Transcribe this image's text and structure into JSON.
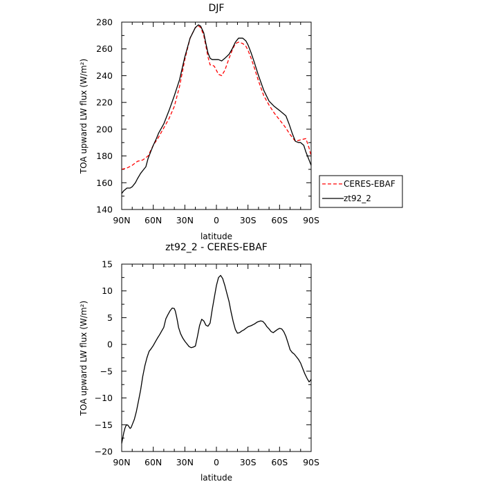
{
  "chart_data": [
    {
      "type": "line",
      "title": "DJF",
      "xlabel": "latitude",
      "ylabel": "TOA upward LW flux (W/m²)",
      "xlim": [
        90,
        -90
      ],
      "ylim": [
        140,
        280
      ],
      "xticks": [
        90,
        60,
        30,
        0,
        -30,
        -60,
        -90
      ],
      "xtick_labels": [
        "90N",
        "60N",
        "30N",
        "0",
        "30S",
        "60S",
        "90S"
      ],
      "yticks": [
        140,
        160,
        180,
        200,
        220,
        240,
        260,
        280
      ],
      "legend": "outside-right",
      "series": [
        {
          "name": "CERES-EBAF",
          "color": "#ff0000",
          "style": "dashed",
          "x": [
            90,
            85,
            80,
            75,
            70,
            65,
            60,
            55,
            50,
            45,
            40,
            35,
            30,
            25,
            20,
            17,
            15,
            12,
            10,
            8,
            6,
            4,
            2,
            0,
            -2,
            -5,
            -8,
            -12,
            -15,
            -18,
            -21,
            -25,
            -28,
            -30,
            -33,
            -36,
            -40,
            -45,
            -50,
            -55,
            -60,
            -65,
            -70,
            -75,
            -80,
            -85,
            -88,
            -90
          ],
          "y": [
            170,
            171,
            173,
            176,
            177,
            180,
            188,
            194,
            201,
            208,
            217,
            232,
            252,
            268,
            276,
            277,
            276,
            270,
            262,
            254,
            248,
            248,
            247,
            244,
            241,
            240,
            244,
            253,
            259,
            264,
            265,
            264,
            262,
            259,
            253,
            246,
            236,
            225,
            218,
            212,
            207,
            202,
            196,
            191,
            192,
            193,
            186,
            180
          ]
        },
        {
          "name": "zt92_2",
          "color": "#000000",
          "style": "solid",
          "x": [
            90,
            88,
            85,
            82,
            80,
            77,
            75,
            72,
            70,
            67,
            65,
            62,
            60,
            57,
            55,
            50,
            45,
            40,
            35,
            30,
            25,
            20,
            17,
            15,
            12,
            10,
            8,
            6,
            4,
            2,
            0,
            -2,
            -5,
            -8,
            -12,
            -15,
            -18,
            -21,
            -25,
            -28,
            -30,
            -33,
            -36,
            -40,
            -45,
            -50,
            -55,
            -60,
            -63,
            -66,
            -69,
            -72,
            -75,
            -78,
            -80,
            -83,
            -85,
            -88,
            -90
          ],
          "y": [
            152,
            154,
            156,
            156,
            157,
            160,
            163,
            167,
            169,
            172,
            178,
            184,
            188,
            193,
            197,
            204,
            214,
            225,
            237,
            254,
            268,
            276,
            278,
            277,
            272,
            264,
            257,
            253,
            252,
            252,
            252,
            252,
            251,
            253,
            256,
            260,
            265,
            268,
            268,
            266,
            263,
            257,
            250,
            240,
            229,
            221,
            217,
            214,
            212,
            210,
            204,
            197,
            191,
            190,
            190,
            188,
            183,
            177,
            173
          ]
        }
      ]
    },
    {
      "type": "line",
      "title": "zt92_2 - CERES-EBAF",
      "xlabel": "latitude",
      "ylabel": "TOA upward LW flux (W/m²)",
      "xlim": [
        90,
        -90
      ],
      "ylim": [
        -20,
        15
      ],
      "xticks": [
        90,
        60,
        30,
        0,
        -30,
        -60,
        -90
      ],
      "xtick_labels": [
        "90N",
        "60N",
        "30N",
        "0",
        "30S",
        "60S",
        "90S"
      ],
      "yticks": [
        -20,
        -15,
        -10,
        -5,
        0,
        5,
        10,
        15
      ],
      "ytick_labels": [
        "−20",
        "−15",
        "−10",
        "−5",
        "0",
        "5",
        "10",
        "15"
      ],
      "series": [
        {
          "name": "zt92_2 - CERES-EBAF",
          "color": "#000000",
          "style": "solid",
          "x": [
            90,
            89,
            88,
            87,
            86,
            85,
            84,
            83,
            82,
            81,
            80,
            78,
            76,
            74,
            72,
            70,
            68,
            66,
            64,
            62,
            60,
            58,
            56,
            54,
            52,
            50,
            48,
            46,
            44,
            42,
            40,
            39,
            38,
            37,
            36,
            34,
            32,
            30,
            28,
            26,
            24,
            22,
            20,
            18,
            16,
            14,
            12,
            10,
            8,
            6,
            4,
            2,
            0,
            -2,
            -4,
            -6,
            -8,
            -10,
            -12,
            -14,
            -16,
            -18,
            -20,
            -22,
            -24,
            -26,
            -28,
            -30,
            -33,
            -36,
            -39,
            -42,
            -44,
            -46,
            -48,
            -50,
            -52,
            -54,
            -56,
            -58,
            -60,
            -62,
            -64,
            -66,
            -68,
            -70,
            -72,
            -74,
            -76,
            -78,
            -80,
            -82,
            -84,
            -86,
            -88,
            -89,
            -90
          ],
          "y": [
            -18.5,
            -17.5,
            -16.5,
            -15.7,
            -15.2,
            -15.0,
            -15.1,
            -15.4,
            -15.7,
            -15.5,
            -15.0,
            -14.0,
            -12.5,
            -10.5,
            -8.5,
            -6.0,
            -4.0,
            -2.5,
            -1.3,
            -0.8,
            -0.2,
            0.5,
            1.2,
            1.8,
            2.5,
            3.2,
            4.8,
            5.6,
            6.3,
            6.8,
            6.7,
            6.2,
            5.3,
            4.3,
            3.2,
            2.0,
            1.2,
            0.6,
            0.1,
            -0.4,
            -0.6,
            -0.5,
            -0.3,
            1.5,
            3.5,
            4.7,
            4.4,
            3.6,
            3.4,
            4.0,
            6.5,
            8.8,
            11.0,
            12.5,
            12.9,
            12.3,
            11.0,
            9.5,
            8.0,
            6.0,
            4.2,
            2.8,
            2.1,
            2.2,
            2.5,
            2.7,
            3.0,
            3.3,
            3.5,
            3.8,
            4.2,
            4.4,
            4.3,
            3.9,
            3.3,
            2.9,
            2.4,
            2.2,
            2.5,
            2.8,
            3.0,
            2.9,
            2.4,
            1.5,
            0.3,
            -1.0,
            -1.5,
            -1.8,
            -2.3,
            -2.8,
            -3.5,
            -4.5,
            -5.5,
            -6.3,
            -7.0,
            -6.8,
            -6.5
          ]
        }
      ]
    }
  ]
}
